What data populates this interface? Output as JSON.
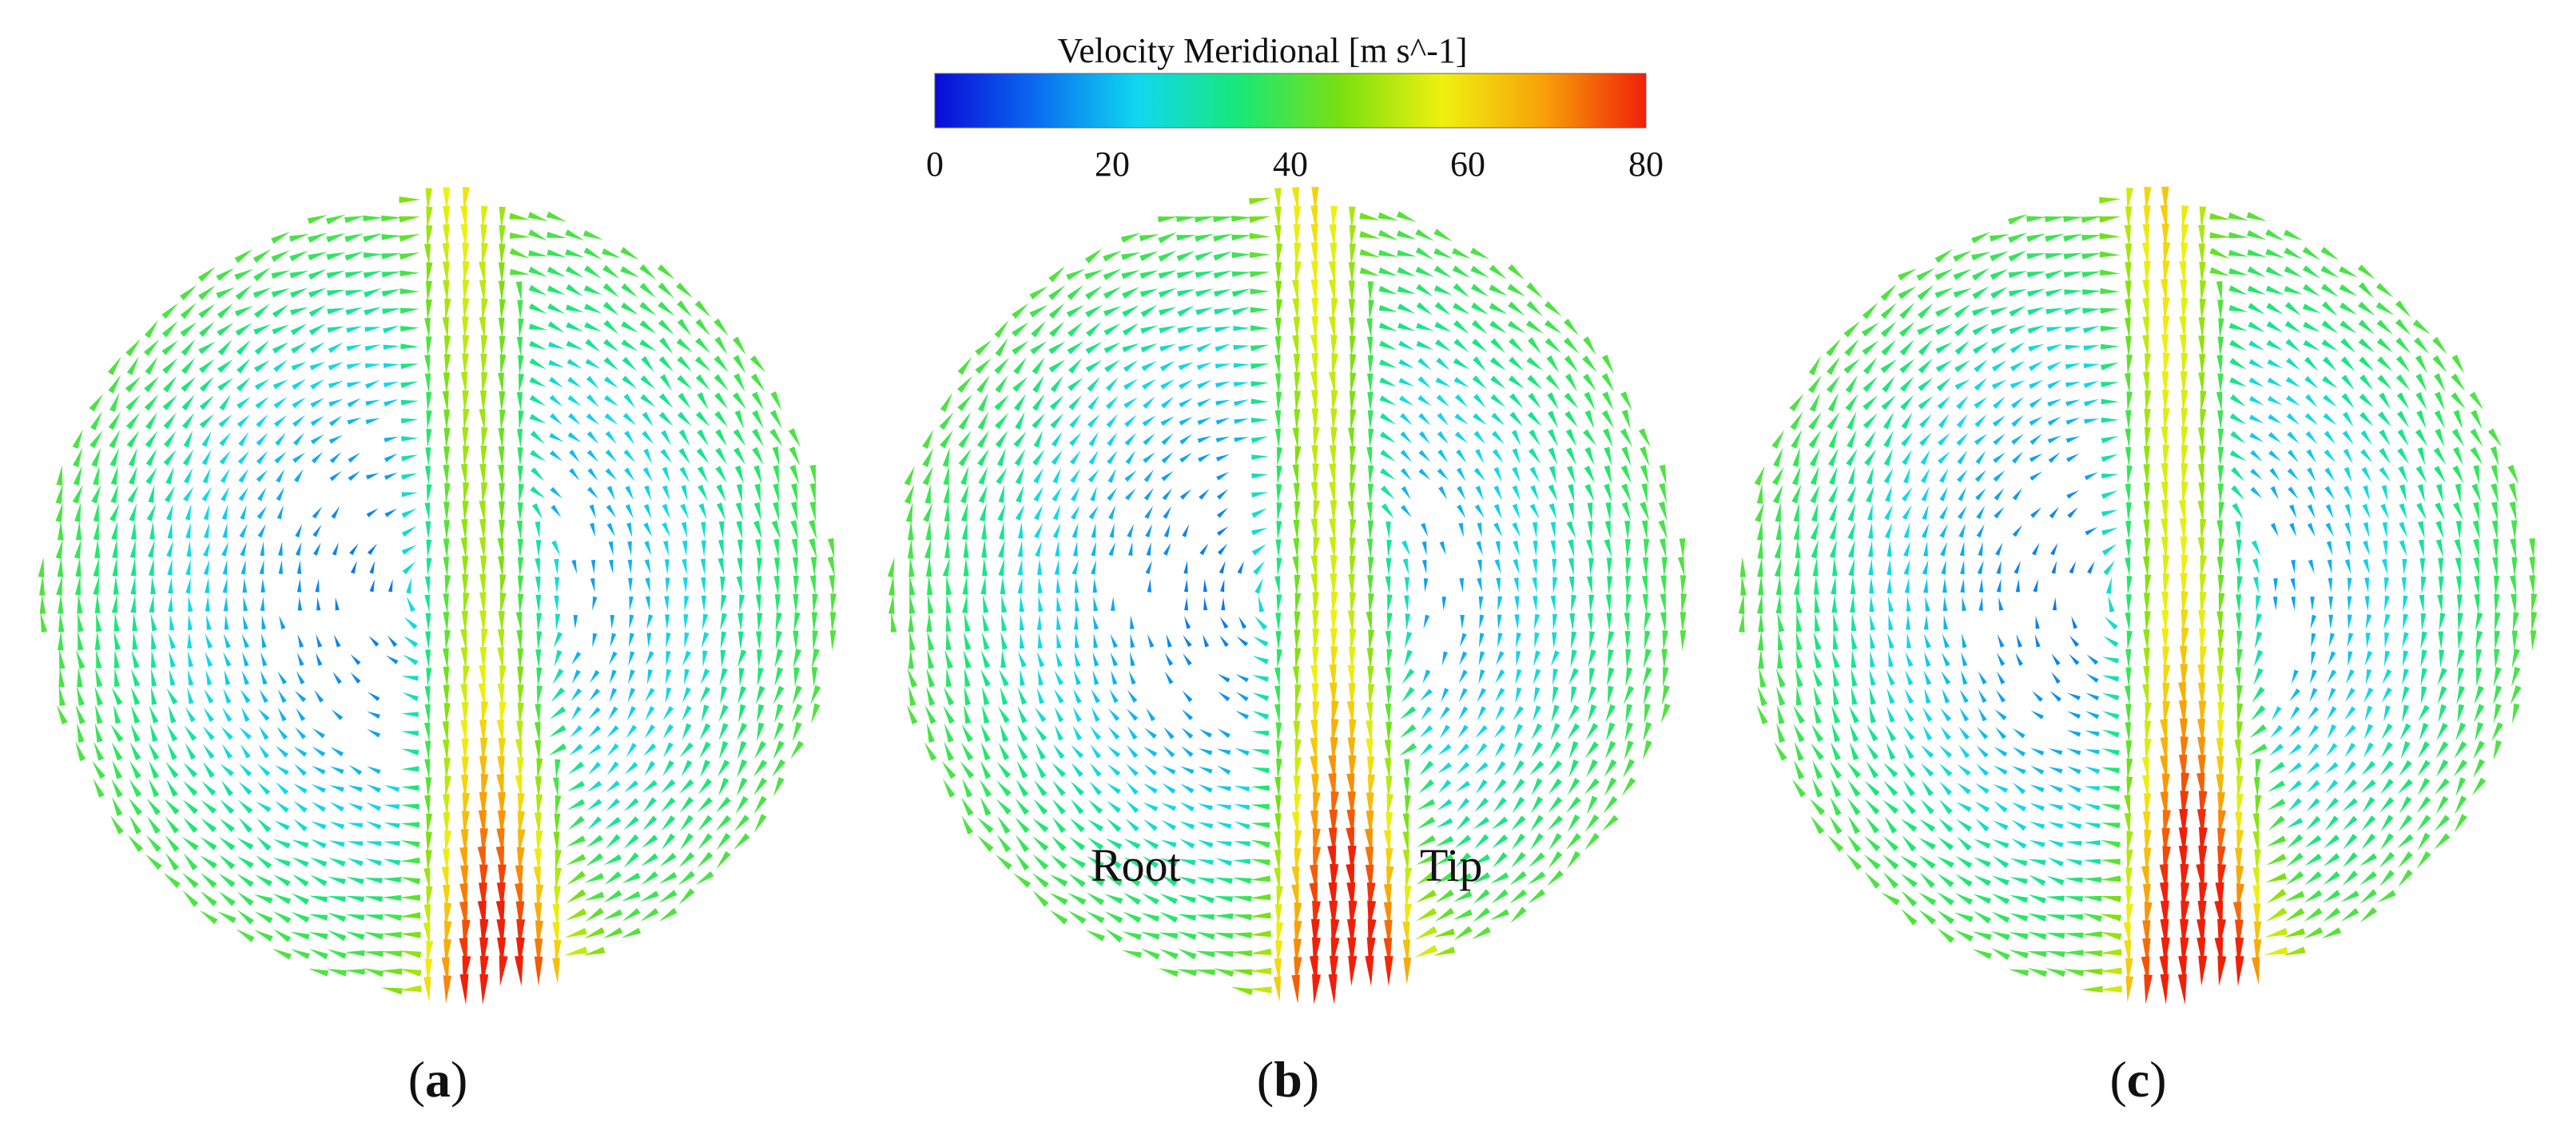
{
  "colorbar": {
    "title": "Velocity Meridional  [m s^-1]",
    "ticks": [
      "0",
      "20",
      "40",
      "60",
      "80"
    ],
    "stops": [
      "#0a0ad8",
      "#0a6cf0",
      "#10d8f0",
      "#18e878",
      "#7ae010",
      "#f0f010",
      "#f8a008",
      "#f02008"
    ]
  },
  "panels": [
    {
      "open": "(",
      "letter": "a",
      "close": ")"
    },
    {
      "open": "(",
      "letter": "b",
      "close": ")"
    },
    {
      "open": "(",
      "letter": "c",
      "close": ")"
    }
  ],
  "annotations": {
    "root": "Root",
    "tip": "Tip"
  }
}
